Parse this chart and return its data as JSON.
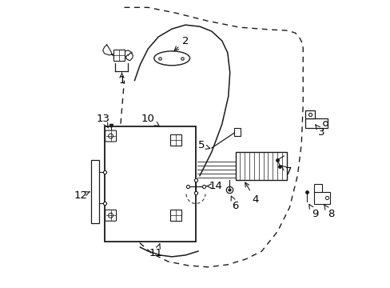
{
  "background_color": "#ffffff",
  "fig_width": 4.89,
  "fig_height": 3.6,
  "dpi": 100,
  "line_color": "#1a1a1a",
  "dashed_color": "#1a1a1a"
}
